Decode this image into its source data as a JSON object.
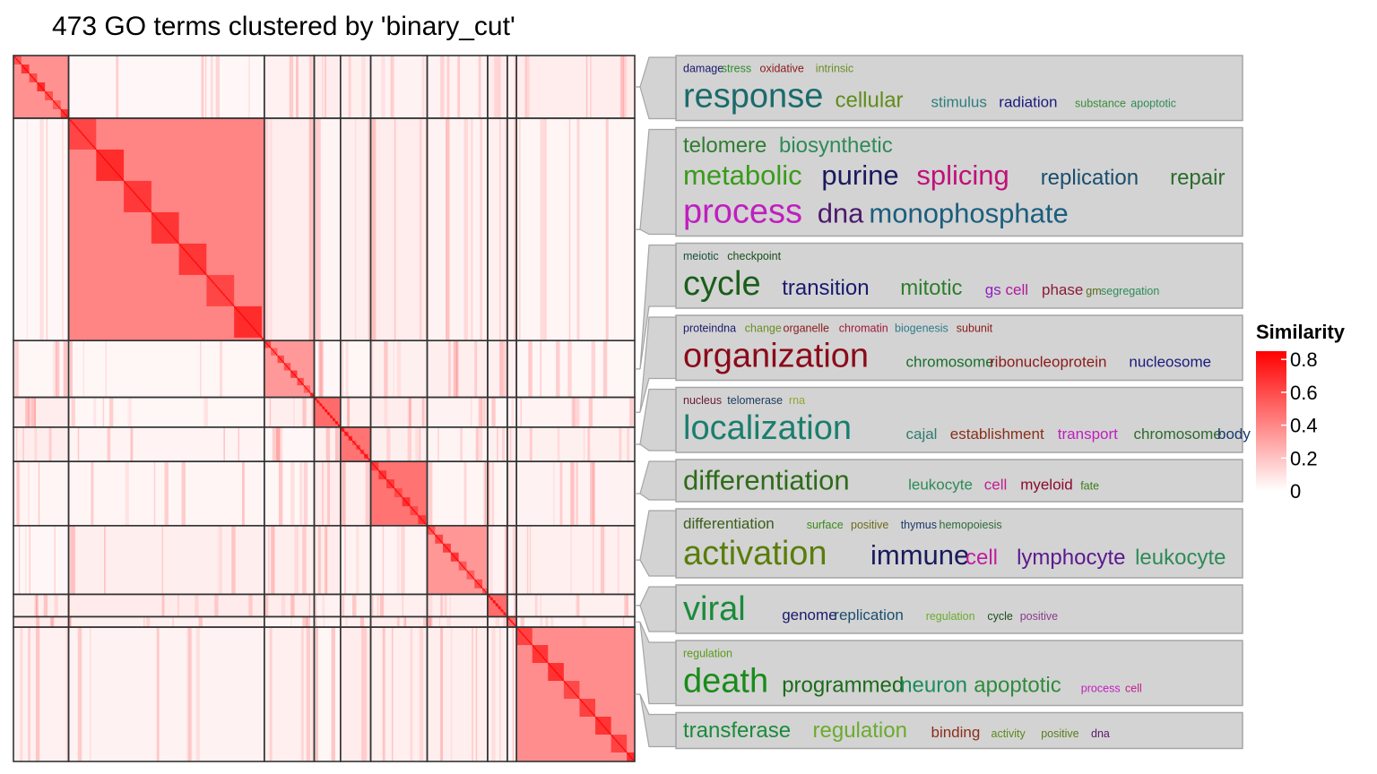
{
  "chart_data": {
    "type": "heatmap",
    "title": "473 GO terms clustered by 'binary_cut'",
    "n_terms": 473,
    "legend": {
      "title": "Similarity",
      "ticks": [
        "0.8",
        "0.6",
        "0.4",
        "0.2",
        "0"
      ],
      "tick_values": [
        0.8,
        0.6,
        0.4,
        0.2,
        0
      ],
      "range": [
        0,
        0.85
      ],
      "color_low": "#ffffff",
      "color_high": "#ff0000",
      "placement": "right"
    },
    "clusters": [
      {
        "size": 42,
        "words": [
          {
            "t": "damage",
            "s": 1,
            "c": "#1a1a6e"
          },
          {
            "t": "stress",
            "s": 1,
            "c": "#2e8b2e"
          },
          {
            "t": "oxidative",
            "s": 1,
            "c": "#8b1a1a"
          },
          {
            "t": "intrinsic",
            "s": 1,
            "c": "#6b8e23"
          },
          {
            "br": 1
          },
          {
            "t": "response",
            "s": 5,
            "c": "#1a6b6b"
          },
          {
            "t": "cellular",
            "s": 3,
            "c": "#5f8c1a"
          },
          {
            "t": "stimulus",
            "s": 2,
            "c": "#2e7d7d"
          },
          {
            "t": "radiation",
            "s": 2,
            "c": "#1a1a7e"
          },
          {
            "t": "substance",
            "s": 1,
            "c": "#3a8b3a"
          },
          {
            "t": "apoptotic",
            "s": 1,
            "c": "#2e8b57"
          }
        ]
      },
      {
        "size": 149,
        "words": [
          {
            "t": "telomere",
            "s": 3,
            "c": "#2e7d32"
          },
          {
            "t": "biosynthetic",
            "s": 3,
            "c": "#2e8b57"
          },
          {
            "br": 1
          },
          {
            "t": "metabolic",
            "s": 4,
            "c": "#3a9b1a"
          },
          {
            "t": "purine",
            "s": 4,
            "c": "#1a1a5e"
          },
          {
            "t": "splicing",
            "s": 4,
            "c": "#c0117a"
          },
          {
            "t": "replication",
            "s": 3,
            "c": "#1a4e6e"
          },
          {
            "t": "repair",
            "s": 3,
            "c": "#2e6b2e"
          },
          {
            "br": 1
          },
          {
            "t": "process",
            "s": 5,
            "c": "#bf1fbf"
          },
          {
            "t": "dna",
            "s": 4,
            "c": "#4b1a6b"
          },
          {
            "t": "monophosphate",
            "s": 4,
            "c": "#1a5e7e"
          }
        ]
      },
      {
        "size": 38,
        "words": [
          {
            "t": "meiotic",
            "s": 1,
            "c": "#1a4e3e"
          },
          {
            "t": "checkpoint",
            "s": 1,
            "c": "#1a4e1a"
          },
          {
            "br": 1
          },
          {
            "t": "cycle",
            "s": 5,
            "c": "#1a5e1a"
          },
          {
            "t": "transition",
            "s": 3,
            "c": "#1a1a6e"
          },
          {
            "t": "mitotic",
            "s": 3,
            "c": "#2e7d2e"
          },
          {
            "t": "gs",
            "s": 2,
            "c": "#8e1fbf"
          },
          {
            "t": "cell",
            "s": 2,
            "c": "#b01a9e"
          },
          {
            "t": "phase",
            "s": 2,
            "c": "#8b1a3a"
          },
          {
            "t": "gm",
            "s": 1,
            "c": "#5a6b1a"
          },
          {
            "t": "segregation",
            "s": 1,
            "c": "#2e8b57"
          }
        ]
      },
      {
        "size": 20,
        "words": [
          {
            "t": "proteindna",
            "s": 1,
            "c": "#1a1a6e"
          },
          {
            "t": "change",
            "s": 1,
            "c": "#6b8e23"
          },
          {
            "t": "organelle",
            "s": 1,
            "c": "#8b1a1a"
          },
          {
            "t": "chromatin",
            "s": 1,
            "c": "#9e1a3a"
          },
          {
            "t": "biogenesis",
            "s": 1,
            "c": "#2e7d8b"
          },
          {
            "t": "subunit",
            "s": 1,
            "c": "#8b1a1a"
          },
          {
            "br": 1
          },
          {
            "t": "organization",
            "s": 5,
            "c": "#8b0a1a"
          },
          {
            "t": "chromosome",
            "s": 2,
            "c": "#1a6e2e"
          },
          {
            "t": "ribonucleoprotein",
            "s": 2,
            "c": "#8b1a1a"
          },
          {
            "t": "nucleosome",
            "s": 2,
            "c": "#1a1a7e"
          }
        ]
      },
      {
        "size": 23,
        "words": [
          {
            "t": "nucleus",
            "s": 1,
            "c": "#6b1a3a"
          },
          {
            "t": "telomerase",
            "s": 1,
            "c": "#1a3a5e"
          },
          {
            "t": "rna",
            "s": 1,
            "c": "#8ea82e"
          },
          {
            "br": 1
          },
          {
            "t": "localization",
            "s": 5,
            "c": "#1a7e6e"
          },
          {
            "t": "cajal",
            "s": 2,
            "c": "#2e7d6e"
          },
          {
            "t": "establishment",
            "s": 2,
            "c": "#8b2e1a"
          },
          {
            "t": "transport",
            "s": 2,
            "c": "#bf1fbf"
          },
          {
            "t": "chromosome",
            "s": 2,
            "c": "#2e6b2e"
          },
          {
            "t": "body",
            "s": 2,
            "c": "#1a3a6e"
          }
        ]
      },
      {
        "size": 43,
        "words": [
          {
            "t": "differentiation",
            "s": 4,
            "c": "#2e6b1a"
          },
          {
            "t": "leukocyte",
            "s": 2,
            "c": "#2e8b57"
          },
          {
            "t": "cell",
            "s": 2,
            "c": "#bf1f8e"
          },
          {
            "t": "myeloid",
            "s": 2,
            "c": "#8b0a2e"
          },
          {
            "t": "fate",
            "s": 1,
            "c": "#3a7d1a"
          }
        ]
      },
      {
        "size": 46,
        "words": [
          {
            "t": "differentiation",
            "s": 2,
            "c": "#3a5e1a"
          },
          {
            "t": "surface",
            "s": 1,
            "c": "#3a8b1a"
          },
          {
            "t": "positive",
            "s": 1,
            "c": "#6b6b1a"
          },
          {
            "t": "thymus",
            "s": 1,
            "c": "#1a3a6e"
          },
          {
            "t": "hemopoiesis",
            "s": 1,
            "c": "#2e6b3a"
          },
          {
            "br": 1
          },
          {
            "t": "activation",
            "s": 5,
            "c": "#5a7d0a"
          },
          {
            "t": "immune",
            "s": 4,
            "c": "#1a1a5e"
          },
          {
            "t": "cell",
            "s": 3,
            "c": "#bf1f9e"
          },
          {
            "t": "lymphocyte",
            "s": 3,
            "c": "#5a1a8e"
          },
          {
            "t": "leukocyte",
            "s": 3,
            "c": "#2e8b57"
          }
        ]
      },
      {
        "size": 15,
        "words": [
          {
            "t": "viral",
            "s": 5,
            "c": "#1a8b3a"
          },
          {
            "t": "genome",
            "s": 2,
            "c": "#1a1a6e"
          },
          {
            "t": "replication",
            "s": 2,
            "c": "#1a4e6e"
          },
          {
            "t": "regulation",
            "s": 1,
            "c": "#6bab2e"
          },
          {
            "t": "cycle",
            "s": 1,
            "c": "#1a4e1a"
          },
          {
            "t": "positive",
            "s": 1,
            "c": "#8b3a8b"
          }
        ]
      },
      {
        "size": 7,
        "words": [
          {
            "t": "regulation",
            "s": 1,
            "c": "#5a9b1a"
          },
          {
            "br": 1
          },
          {
            "t": "death",
            "s": 5,
            "c": "#1a8b1a"
          },
          {
            "t": "programmed",
            "s": 3,
            "c": "#1a6b1a"
          },
          {
            "t": "neuron",
            "s": 3,
            "c": "#1a8b5a"
          },
          {
            "t": "apoptotic",
            "s": 3,
            "c": "#2e8b3a"
          },
          {
            "t": "process",
            "s": 1,
            "c": "#bf1fbf"
          },
          {
            "t": "cell",
            "s": 1,
            "c": "#bf1f8e"
          }
        ]
      },
      {
        "size": 90,
        "words": [
          {
            "t": "transferase",
            "s": 3,
            "c": "#1a8b3a"
          },
          {
            "t": "regulation",
            "s": 3,
            "c": "#6bab2e"
          },
          {
            "t": "binding",
            "s": 2,
            "c": "#8b2e1a"
          },
          {
            "t": "activity",
            "s": 1,
            "c": "#5a8b1a"
          },
          {
            "t": "positive",
            "s": 1,
            "c": "#5a7d1a"
          },
          {
            "t": "dna",
            "s": 1,
            "c": "#5a1a6e"
          }
        ]
      }
    ]
  }
}
